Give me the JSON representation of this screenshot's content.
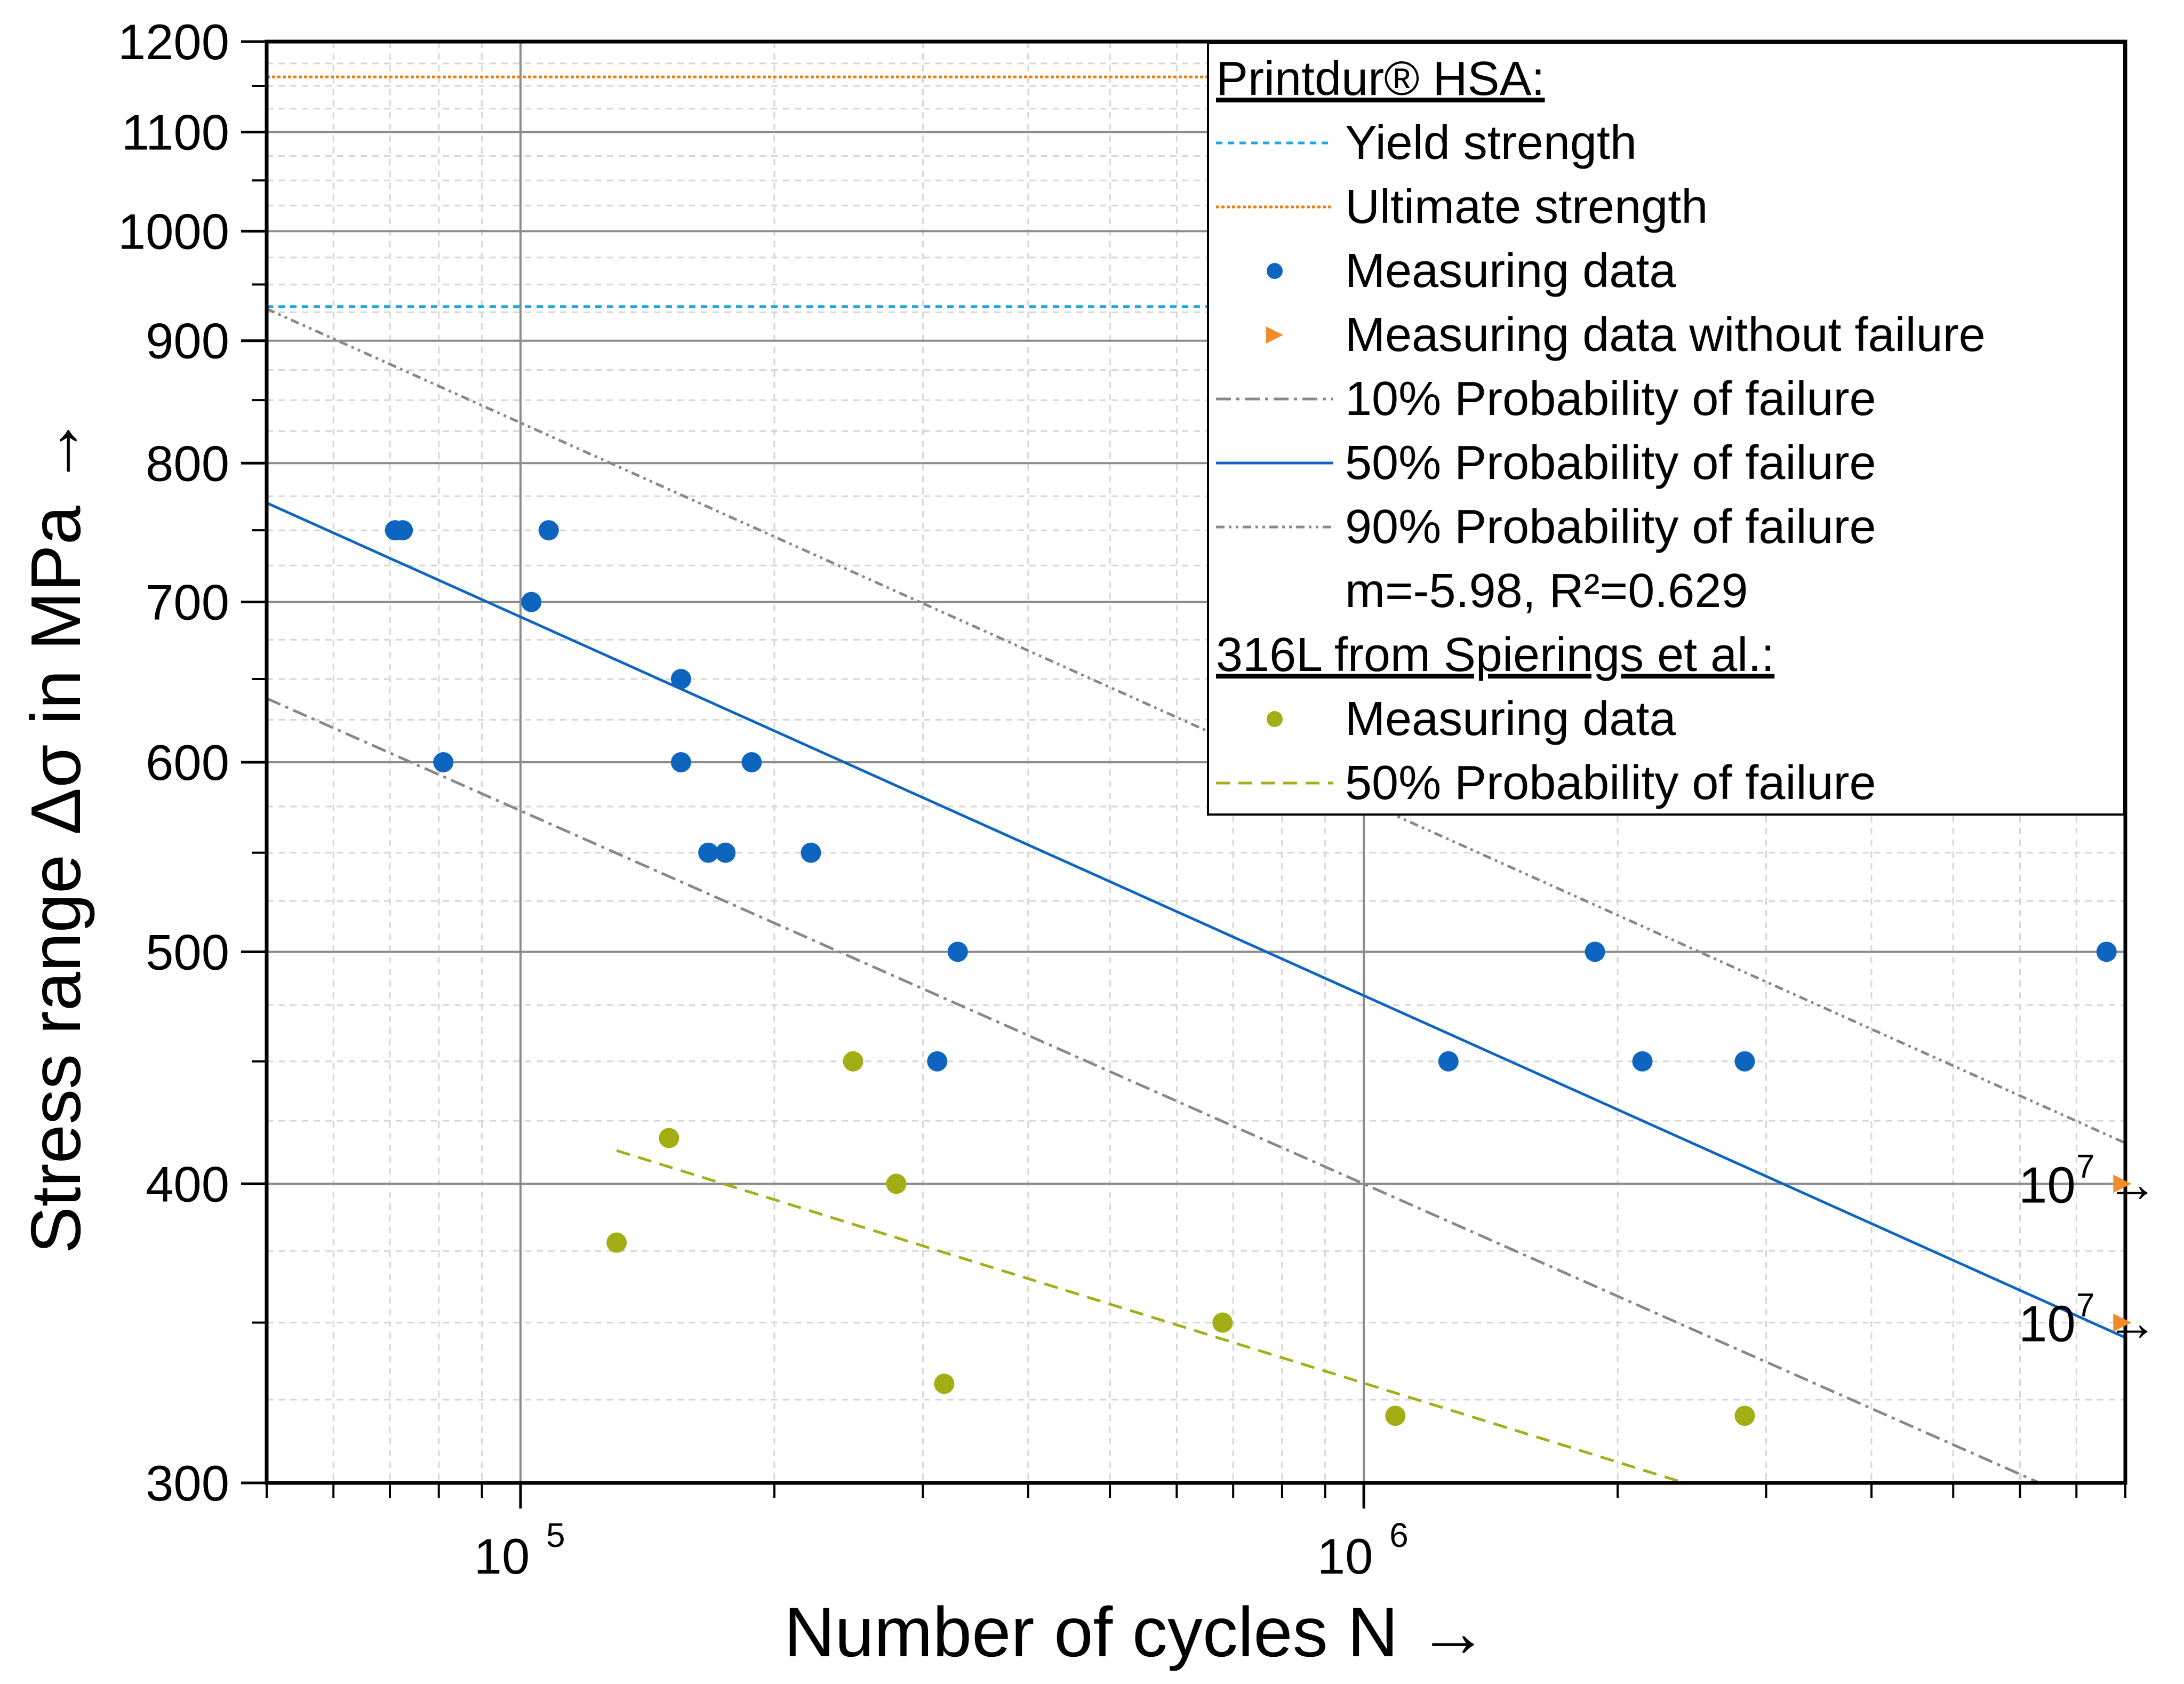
{
  "chart_data": {
    "type": "scatter",
    "xlabel": "Number of cycles N →",
    "ylabel": "Stress range Δσ in MPa →",
    "xscale": "log",
    "yscale": "log",
    "xlim": [
      50000,
      8000000
    ],
    "ylim": [
      300,
      1200
    ],
    "x_tick_labels": [
      "10",
      "10"
    ],
    "x_tick_exponents": [
      "5",
      "6"
    ],
    "x_tick_values": [
      100000,
      1000000
    ],
    "y_ticks": [
      300,
      400,
      500,
      600,
      700,
      800,
      900,
      1000,
      1100,
      1200
    ],
    "grid": true,
    "legend_position": "top-right",
    "legend": {
      "group1_title": "Printdur® HSA:",
      "yield": "Yield strength",
      "ultimate": "Ultimate strength",
      "measuring": "Measuring data",
      "runout": "Measuring data without failure",
      "p10": "10% Probability of failure",
      "p50": "50% Probability of failure",
      "p90": "90% Probability of failure",
      "fit_stats": "m=-5.98, R²=0.629",
      "group2_title": "316L from Spierings et al.:",
      "measuring_316l": "Measuring data",
      "p50_316l": "50% Probability of failure"
    },
    "series": [
      {
        "name": "Yield strength",
        "kind": "hline",
        "color": "#1fa5e6",
        "y": 930
      },
      {
        "name": "Ultimate strength",
        "kind": "hline",
        "color": "#f07c13",
        "y": 1160
      },
      {
        "name": "Measuring data",
        "kind": "points",
        "color": "#0e65c0",
        "points": [
          [
            71000,
            750
          ],
          [
            72500,
            750
          ],
          [
            81000,
            600
          ],
          [
            103000,
            700
          ],
          [
            108000,
            750
          ],
          [
            155000,
            650
          ],
          [
            155000,
            600
          ],
          [
            167000,
            550
          ],
          [
            175000,
            550
          ],
          [
            188000,
            600
          ],
          [
            221000,
            550
          ],
          [
            312000,
            450
          ],
          [
            330000,
            500
          ],
          [
            1260000,
            450
          ],
          [
            1880000,
            500
          ],
          [
            2140000,
            450
          ],
          [
            2830000,
            450
          ],
          [
            7600000,
            500
          ]
        ]
      },
      {
        "name": "Measuring data without failure",
        "kind": "runout",
        "color": "#f28c28",
        "points": [
          [
            7900000,
            400
          ],
          [
            7900000,
            350
          ]
        ],
        "annotation_base": "10",
        "annotation_exp": "7",
        "annotation_arrow": "→"
      },
      {
        "name": "10% Probability of failure",
        "kind": "line",
        "color": "#888888",
        "points": [
          [
            50000,
            638
          ],
          [
            6330000,
            300
          ]
        ]
      },
      {
        "name": "50% Probability of failure",
        "kind": "line",
        "color": "#0e65c0",
        "points": [
          [
            50000,
            770
          ],
          [
            8000000,
            345
          ]
        ]
      },
      {
        "name": "90% Probability of failure",
        "kind": "line",
        "color": "#888888",
        "points": [
          [
            50000,
            928
          ],
          [
            8000000,
            416
          ]
        ]
      },
      {
        "name": "316L Measuring data",
        "kind": "points",
        "color": "#a3ad14",
        "points": [
          [
            130000,
            378
          ],
          [
            150000,
            418
          ],
          [
            248000,
            450
          ],
          [
            279000,
            400
          ],
          [
            318000,
            330
          ],
          [
            680000,
            350
          ],
          [
            1090000,
            320
          ],
          [
            2830000,
            320
          ]
        ]
      },
      {
        "name": "316L 50% Probability of failure",
        "kind": "line",
        "color": "#a3ad14",
        "points": [
          [
            130000,
            413
          ],
          [
            2400000,
            300
          ]
        ]
      }
    ]
  }
}
